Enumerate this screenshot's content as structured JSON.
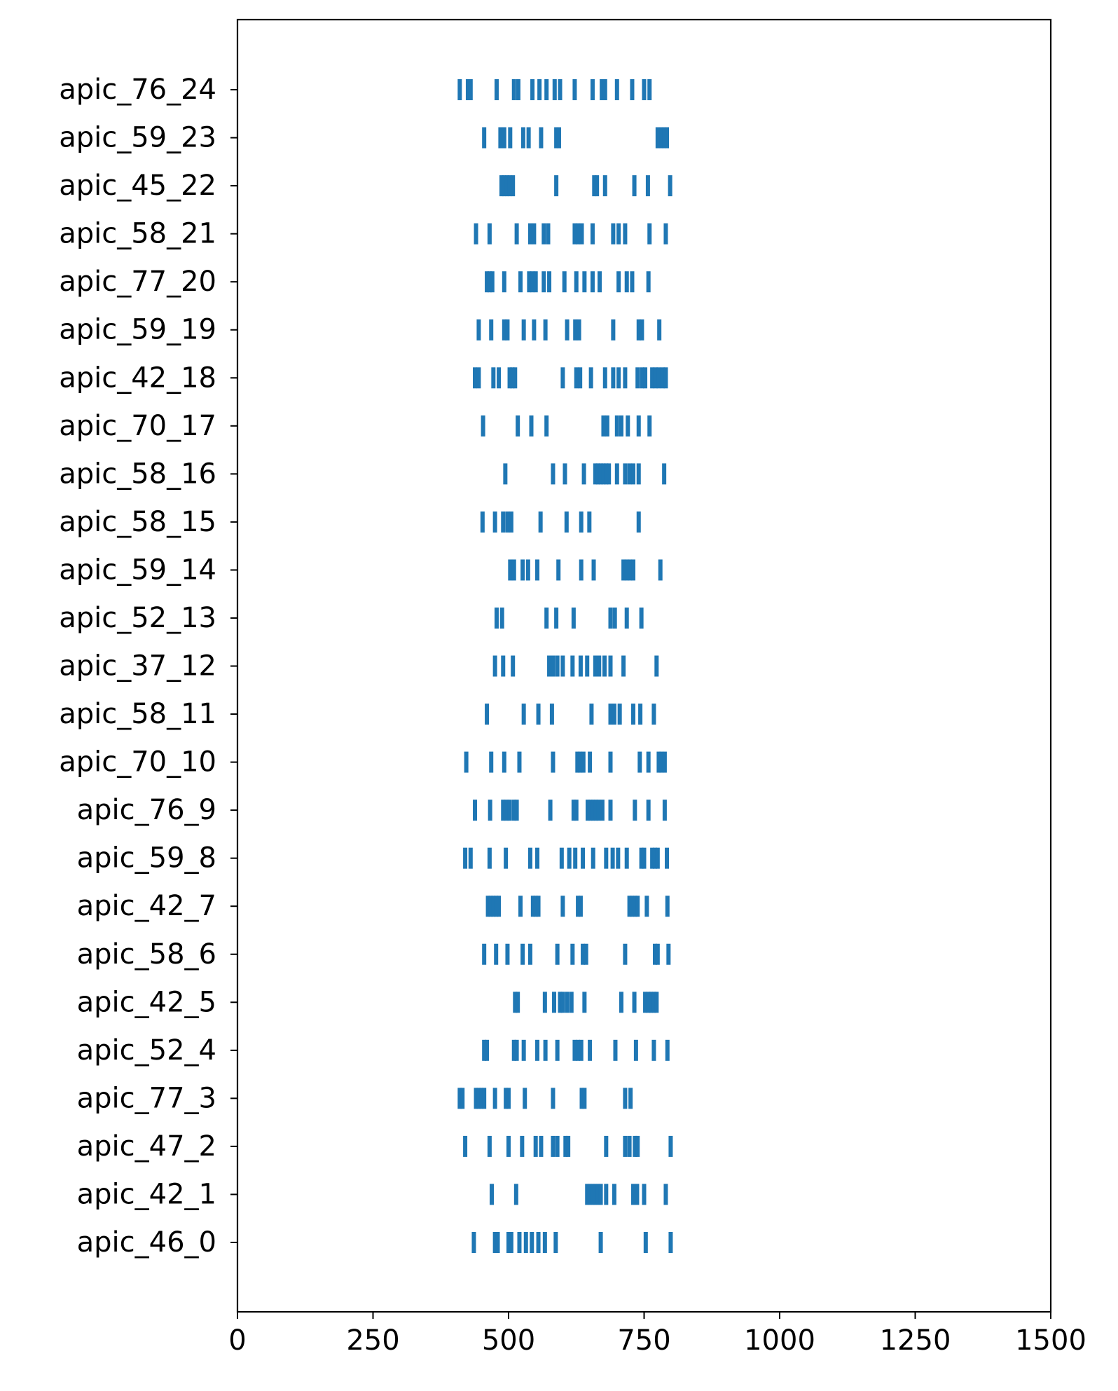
{
  "chart_data": {
    "type": "eventplot",
    "title": "",
    "xlabel": "",
    "ylabel": "",
    "xlim": [
      0,
      1500
    ],
    "xticks": [
      0,
      250,
      500,
      750,
      1000,
      1250,
      1500
    ],
    "xtick_labels": [
      "0",
      "250",
      "500",
      "750",
      "1000",
      "1250",
      "1500"
    ],
    "grid": false,
    "color": "#1f77b4",
    "series": [
      {
        "name": "apic_46_0",
        "values": [
          436,
          475,
          480,
          500,
          505,
          520,
          532,
          543,
          555,
          567,
          587,
          670,
          753,
          799
        ]
      },
      {
        "name": "apic_42_1",
        "values": [
          469,
          514,
          645,
          650,
          655,
          660,
          665,
          670,
          680,
          695,
          730,
          737,
          750,
          790
        ]
      },
      {
        "name": "apic_47_2",
        "values": [
          420,
          465,
          500,
          525,
          550,
          560,
          582,
          590,
          605,
          610,
          680,
          715,
          723,
          733,
          738,
          799
        ]
      },
      {
        "name": "apic_77_3",
        "values": [
          410,
          415,
          440,
          445,
          450,
          455,
          475,
          495,
          500,
          530,
          582,
          635,
          640,
          715,
          725
        ]
      },
      {
        "name": "apic_52_4",
        "values": [
          455,
          460,
          510,
          515,
          528,
          553,
          568,
          590,
          622,
          628,
          634,
          650,
          697,
          735,
          768,
          793
        ]
      },
      {
        "name": "apic_42_5",
        "values": [
          512,
          517,
          567,
          584,
          595,
          600,
          608,
          616,
          640,
          708,
          732,
          752,
          758,
          763,
          768,
          773
        ]
      },
      {
        "name": "apic_58_6",
        "values": [
          455,
          477,
          498,
          526,
          540,
          590,
          618,
          637,
          643,
          715,
          770,
          775,
          795
        ]
      },
      {
        "name": "apic_42_7",
        "values": [
          462,
          467,
          472,
          477,
          482,
          522,
          545,
          550,
          555,
          600,
          628,
          633,
          723,
          728,
          733,
          738,
          755,
          793
        ]
      },
      {
        "name": "apic_59_8",
        "values": [
          420,
          430,
          465,
          495,
          540,
          553,
          598,
          612,
          623,
          637,
          656,
          680,
          692,
          702,
          718,
          745,
          750,
          765,
          770,
          775,
          792
        ]
      },
      {
        "name": "apic_76_9",
        "values": [
          438,
          466,
          490,
          496,
          502,
          510,
          515,
          577,
          620,
          625,
          646,
          651,
          656,
          661,
          666,
          673,
          688,
          733,
          758,
          788
        ]
      },
      {
        "name": "apic_70_10",
        "values": [
          422,
          468,
          492,
          520,
          582,
          627,
          632,
          638,
          650,
          688,
          742,
          758,
          777,
          782,
          788
        ]
      },
      {
        "name": "apic_58_11",
        "values": [
          460,
          528,
          555,
          580,
          653,
          688,
          695,
          705,
          730,
          743,
          768
        ]
      },
      {
        "name": "apic_37_12",
        "values": [
          475,
          490,
          508,
          575,
          582,
          590,
          600,
          618,
          633,
          645,
          660,
          667,
          677,
          688,
          712,
          773
        ]
      },
      {
        "name": "apic_52_13",
        "values": [
          478,
          488,
          570,
          588,
          620,
          688,
          696,
          718,
          745
        ]
      },
      {
        "name": "apic_59_14",
        "values": [
          503,
          510,
          526,
          536,
          553,
          592,
          634,
          657,
          712,
          718,
          724,
          730,
          780
        ]
      },
      {
        "name": "apic_58_15",
        "values": [
          452,
          475,
          490,
          498,
          505,
          559,
          607,
          634,
          649,
          740
        ]
      },
      {
        "name": "apic_58_16",
        "values": [
          494,
          582,
          604,
          639,
          660,
          665,
          670,
          675,
          680,
          685,
          700,
          715,
          723,
          730,
          740,
          787
        ]
      },
      {
        "name": "apic_70_17",
        "values": [
          453,
          517,
          542,
          570,
          675,
          682,
          700,
          708,
          720,
          740,
          760
        ]
      },
      {
        "name": "apic_42_18",
        "values": [
          438,
          445,
          472,
          482,
          502,
          507,
          512,
          600,
          625,
          632,
          652,
          678,
          693,
          703,
          715,
          738,
          746,
          752,
          765,
          771,
          777,
          784,
          790
        ]
      },
      {
        "name": "apic_59_19",
        "values": [
          445,
          468,
          492,
          498,
          528,
          547,
          568,
          608,
          623,
          630,
          693,
          740,
          746,
          778
        ]
      },
      {
        "name": "apic_77_20",
        "values": [
          460,
          465,
          470,
          492,
          522,
          538,
          544,
          550,
          565,
          575,
          603,
          625,
          640,
          655,
          668,
          703,
          718,
          728,
          758
        ]
      },
      {
        "name": "apic_58_21",
        "values": [
          440,
          465,
          515,
          540,
          547,
          565,
          573,
          622,
          628,
          635,
          655,
          693,
          703,
          715,
          760,
          790
        ]
      },
      {
        "name": "apic_45_22",
        "values": [
          487,
          492,
          497,
          502,
          508,
          588,
          658,
          663,
          678,
          732,
          757,
          798
        ]
      },
      {
        "name": "apic_59_23",
        "values": [
          455,
          485,
          492,
          503,
          527,
          537,
          560,
          588,
          593,
          775,
          782,
          787,
          792
        ]
      },
      {
        "name": "apic_76_24",
        "values": [
          410,
          425,
          430,
          478,
          510,
          518,
          544,
          557,
          570,
          585,
          595,
          622,
          655,
          672,
          678,
          700,
          728,
          750,
          760
        ]
      }
    ]
  }
}
